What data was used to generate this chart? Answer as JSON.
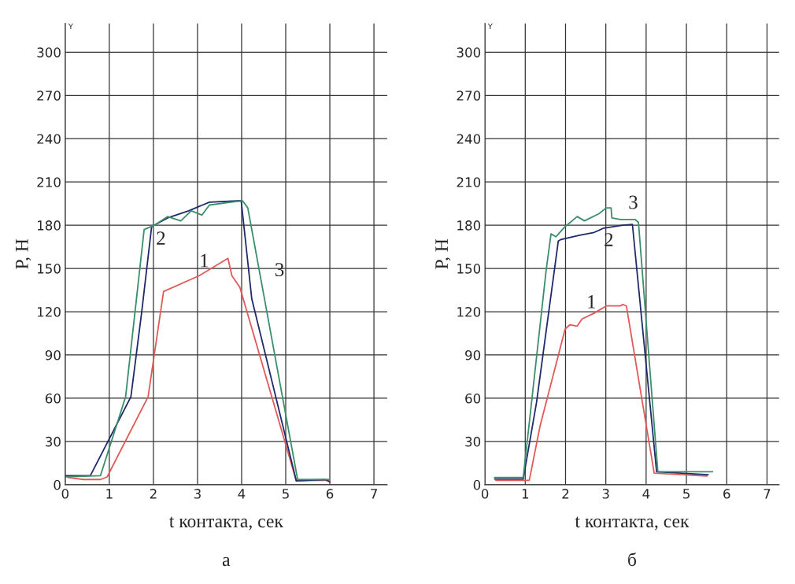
{
  "chart_data": [
    {
      "type": "line",
      "title": "а",
      "xlabel": "t контакта, сек",
      "ylabel": "P, H",
      "xlim": [
        0,
        7.3
      ],
      "ylim": [
        0,
        320
      ],
      "xticks": [
        0,
        1,
        2,
        3,
        4,
        5,
        6,
        7
      ],
      "yticks": [
        0,
        30,
        60,
        90,
        120,
        150,
        180,
        210,
        240,
        270,
        300
      ],
      "grid": true,
      "legend": false,
      "annotations": [
        "Y",
        {
          "text": "1",
          "x": 3.04,
          "y": 145
        },
        {
          "text": "2",
          "x": 1.96,
          "y": 179
        },
        {
          "text": "3",
          "x": 4.4,
          "y": 148
        }
      ],
      "series": [
        {
          "color": "#e05a5a",
          "x": [
            0.06,
            0.42,
            0.8,
            0.95,
            1.88,
            2.23,
            3.04,
            3.69,
            3.78,
            3.96,
            5.24,
            5.98,
            6.0
          ],
          "values": [
            5,
            3.6,
            3.6,
            5.4,
            61,
            134,
            145,
            157,
            145,
            137,
            2.7,
            3.2,
            1.8
          ]
        },
        {
          "color": "#1f2a6b",
          "x": [
            0,
            0.57,
            1.49,
            1.73,
            1.96,
            2.32,
            2.8,
            3.27,
            3.99,
            4.23,
            5.24,
            5.89,
            6.0
          ],
          "values": [
            6.3,
            6.3,
            61,
            118.6,
            179,
            185,
            190,
            196,
            197,
            129,
            2.7,
            3.6,
            2
          ]
        },
        {
          "color": "#3a8f6a",
          "x": [
            0,
            0.8,
            1.37,
            1.79,
            2.02,
            2.32,
            2.62,
            2.86,
            3.1,
            3.27,
            3.75,
            4.02,
            4.14,
            5.27,
            5.98
          ],
          "values": [
            5.4,
            6.3,
            61,
            177,
            180,
            186,
            183,
            190,
            187,
            194,
            196,
            197,
            192,
            3.6,
            3.6
          ]
        }
      ]
    },
    {
      "type": "line",
      "title": "б",
      "xlabel": "t контакта, сек",
      "ylabel": "P, H",
      "xlim": [
        0,
        7.3
      ],
      "ylim": [
        0,
        320
      ],
      "xticks": [
        0,
        1,
        2,
        3,
        4,
        5,
        6,
        7
      ],
      "yticks": [
        0,
        30,
        60,
        90,
        120,
        150,
        180,
        210,
        240,
        270,
        300
      ],
      "grid": true,
      "legend": false,
      "annotations": [
        "Y",
        {
          "text": "1",
          "x": 2.41,
          "y": 115
        },
        {
          "text": "2",
          "x": 2.95,
          "y": 178
        },
        {
          "text": "3",
          "x": 3.72,
          "y": 184
        }
      ],
      "series": [
        {
          "color": "#e05a5a",
          "x": [
            0.27,
            1.1,
            1.37,
            1.99,
            2.11,
            2.29,
            2.41,
            2.71,
            3.01,
            3.36,
            3.42,
            3.51,
            4.2,
            5.51
          ],
          "values": [
            3,
            3,
            41,
            108,
            111,
            110,
            115,
            119,
            124,
            124,
            125,
            124,
            8,
            6
          ]
        },
        {
          "color": "#1f2a6b",
          "x": [
            0.24,
            0.95,
            1.28,
            1.82,
            1.88,
            2.35,
            2.71,
            2.95,
            3.42,
            3.66,
            4.26,
            5.54
          ],
          "values": [
            4,
            4,
            57,
            169,
            170,
            173,
            175,
            178,
            180,
            180.5,
            9,
            7
          ]
        },
        {
          "color": "#3a8f6a",
          "x": [
            0.24,
            0.95,
            1.52,
            1.64,
            1.76,
            1.99,
            2.29,
            2.47,
            2.83,
            3.01,
            3.13,
            3.15,
            3.36,
            3.72,
            3.81,
            4.29,
            5.65
          ],
          "values": [
            5,
            5,
            149,
            174,
            172,
            179,
            186,
            183,
            188,
            192,
            192,
            185,
            184,
            184,
            182,
            9,
            9
          ]
        }
      ]
    }
  ]
}
